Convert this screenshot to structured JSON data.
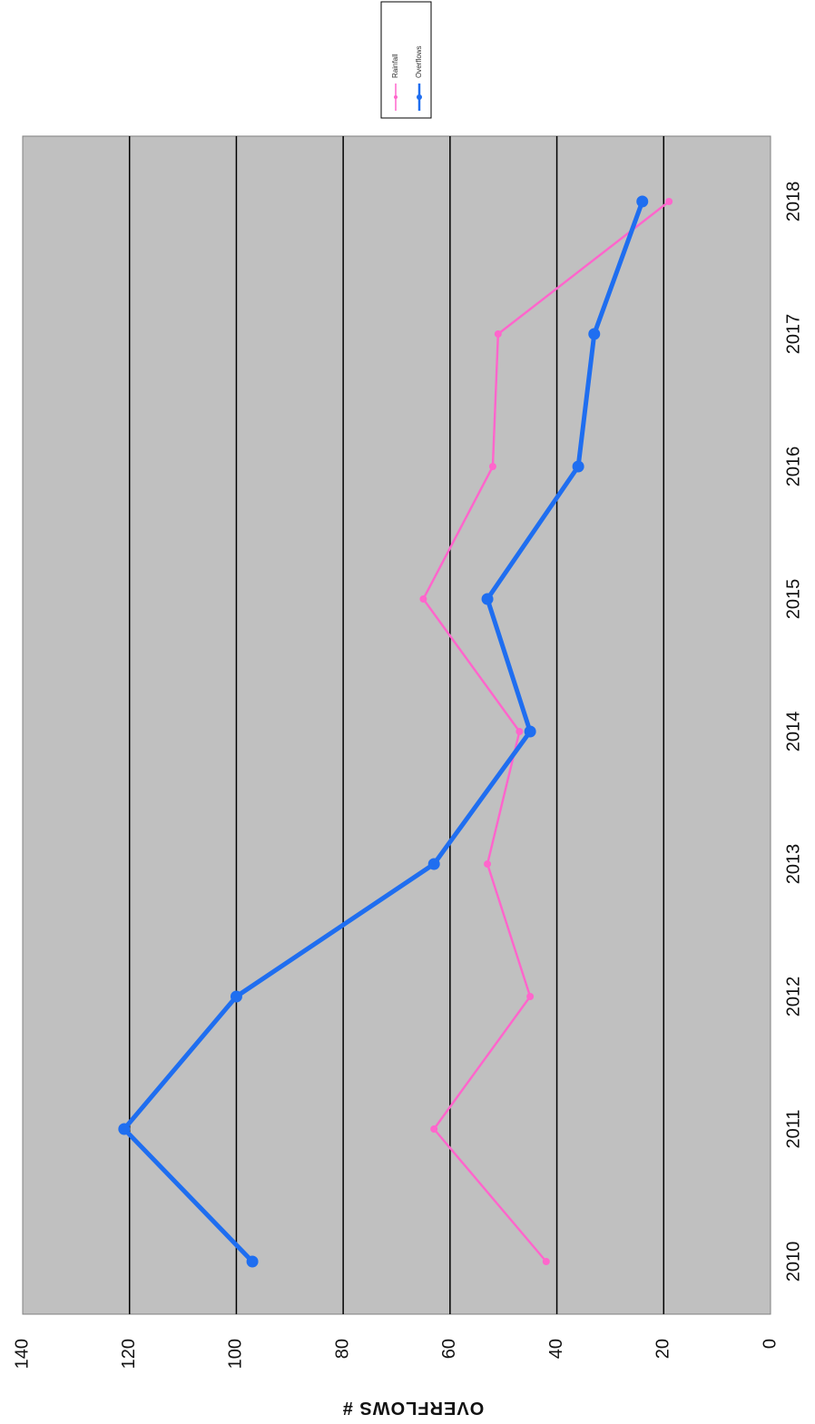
{
  "chart_data": {
    "type": "line",
    "orientation": "rotated-90-clockwise",
    "categories": [
      "2010",
      "2011",
      "2012",
      "2013",
      "2014",
      "2015",
      "2016",
      "2017",
      "2018"
    ],
    "series": [
      {
        "name": "Rainfall",
        "color": "#ff66cc",
        "values": [
          42,
          63,
          45,
          53,
          47,
          65,
          52,
          51,
          19
        ]
      },
      {
        "name": "Overflows",
        "color": "#1f6ef0",
        "values": [
          97,
          121,
          100,
          63,
          45,
          53,
          36,
          33,
          24
        ]
      }
    ],
    "title": "",
    "xlabel": "",
    "ylabel": "OVERFLOWS #",
    "ylim": [
      0,
      140
    ],
    "yticks": [
      0,
      20,
      40,
      60,
      80,
      100,
      120,
      140
    ],
    "grid": true,
    "legend_position": "top-right",
    "plot_background": "#c0c0c0"
  }
}
